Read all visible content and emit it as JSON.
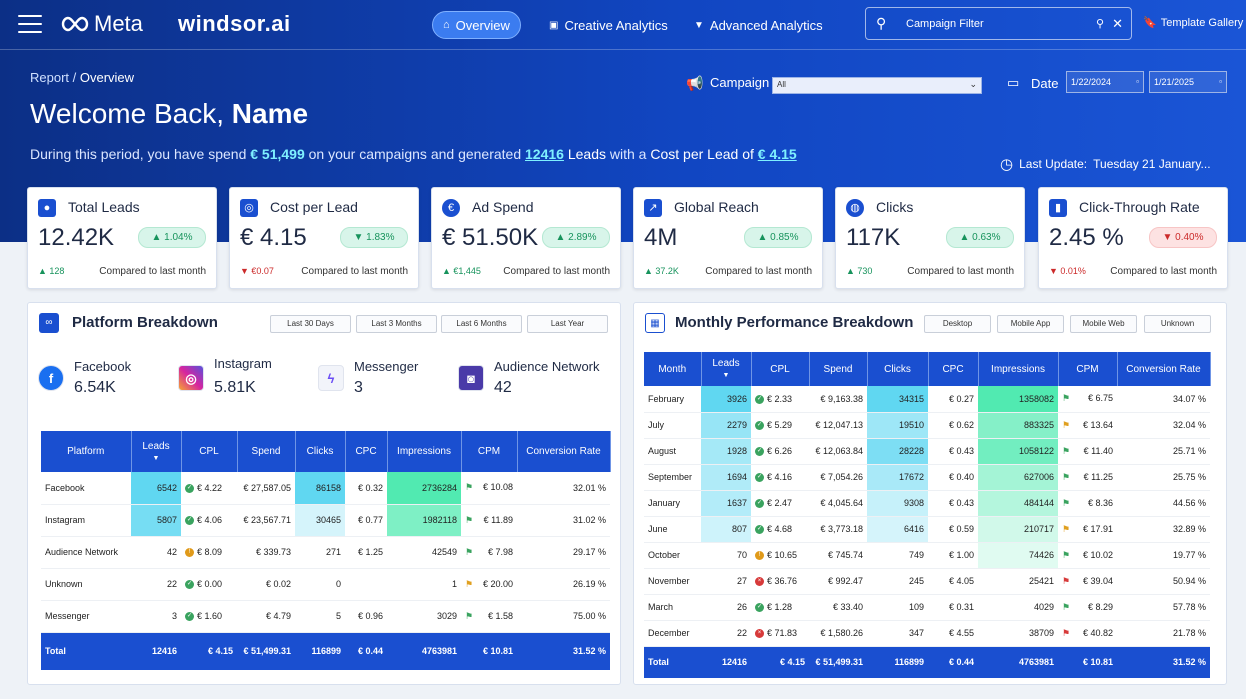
{
  "header": {
    "brand_meta": "Meta",
    "brand_windsor": "windsor.ai",
    "nav": [
      {
        "label": "Overview"
      },
      {
        "label": "Creative Analytics"
      },
      {
        "label": "Advanced Analytics"
      }
    ],
    "filter_placeholder": "Campaign Filter",
    "template_gallery": "Template Gallery"
  },
  "breadcrumb": {
    "root": "Report",
    "sep": " / ",
    "current": "Overview"
  },
  "welcome": {
    "prefix": "Welcome Back, ",
    "name": "Name"
  },
  "summary": {
    "p1": "During this period, you have spend ",
    "spend": "€ 51,499",
    "p2": " on your campaigns and generated ",
    "leads": "12416",
    "p3": " Leads",
    "p4": " with a ",
    "p5": "Cost per Lead of ",
    "cpl": "€ 4.15"
  },
  "filters": {
    "campaign_label": "Campaign",
    "campaign_value": "All",
    "date_label": "Date",
    "date_from": "1/22/2024",
    "date_to": "1/21/2025",
    "last_update_label": "Last Update:",
    "last_update_value": "Tuesday 21 January..."
  },
  "kpis": [
    {
      "title": "Total Leads",
      "value": "12.42K",
      "badge": "▲ 1.04%",
      "dir": "up",
      "delta": "▲ 128",
      "compare": "Compared to last month"
    },
    {
      "title": "Cost per Lead",
      "value": "€ 4.15",
      "badge": "▼ 1.83%",
      "dir": "up",
      "delta": "▼ €0.07",
      "compare": "Compared to last month"
    },
    {
      "title": "Ad Spend",
      "value": "€ 51.50K",
      "badge": "▲ 2.89%",
      "dir": "up",
      "delta": "▲ €1,445",
      "compare": "Compared to last month"
    },
    {
      "title": "Global Reach",
      "value": "4M",
      "badge": "▲ 0.85%",
      "dir": "up",
      "delta": "▲ 37.2K",
      "compare": "Compared to last month"
    },
    {
      "title": "Clicks",
      "value": "117K",
      "badge": "▲ 0.63%",
      "dir": "up",
      "delta": "▲ 730",
      "compare": "Compared to last month"
    },
    {
      "title": "Click-Through Rate",
      "value": "2.45 %",
      "badge": "▼ 0.40%",
      "dir": "down",
      "delta": "▼ 0.01%",
      "compare": "Compared to last month"
    }
  ],
  "platform": {
    "title": "Platform Breakdown",
    "buttons": [
      "Last 30 Days",
      "Last 3 Months",
      "Last 6 Months",
      "Last Year"
    ],
    "cards": [
      {
        "name": "Facebook",
        "value": "6.54K"
      },
      {
        "name": "Instagram",
        "value": "5.81K"
      },
      {
        "name": "Messenger",
        "value": "3"
      },
      {
        "name": "Audience Network",
        "value": "42"
      }
    ],
    "headers": [
      "Platform",
      "Leads",
      "CPL",
      "Spend",
      "Clicks",
      "CPC",
      "Impressions",
      "CPM",
      "Conversion Rate"
    ],
    "rows": [
      {
        "platform": "Facebook",
        "leads": "6542",
        "cpl": "€ 4.22",
        "cpl_status": "ok",
        "spend": "€ 27,587.05",
        "clicks": "86158",
        "cpc": "€ 0.32",
        "impressions": "2736284",
        "cpm": "€ 10.08",
        "cpm_flag": "green",
        "conv": "32.01 %",
        "leads_level": 1.0,
        "clicks_level": 1.0,
        "imp_level": 1.0
      },
      {
        "platform": "Instagram",
        "leads": "5807",
        "cpl": "€ 4.06",
        "cpl_status": "ok",
        "spend": "€ 23,567.71",
        "clicks": "30465",
        "cpc": "€ 0.77",
        "impressions": "1982118",
        "cpm": "€ 11.89",
        "cpm_flag": "green",
        "conv": "31.02 %",
        "leads_level": 0.85,
        "clicks_level": 0.15,
        "imp_level": 0.7
      },
      {
        "platform": "Audience Network",
        "leads": "42",
        "cpl": "€ 8.09",
        "cpl_status": "warn",
        "spend": "€ 339.73",
        "clicks": "271",
        "cpc": "€ 1.25",
        "impressions": "42549",
        "cpm": "€ 7.98",
        "cpm_flag": "green",
        "conv": "29.17 %",
        "leads_level": 0,
        "clicks_level": 0,
        "imp_level": 0
      },
      {
        "platform": "Unknown",
        "leads": "22",
        "cpl": "€ 0.00",
        "cpl_status": "ok",
        "spend": "€ 0.02",
        "clicks": "0",
        "cpc": "",
        "impressions": "1",
        "cpm": "€ 20.00",
        "cpm_flag": "yellow",
        "conv": "26.19 %",
        "leads_level": 0,
        "clicks_level": 0,
        "imp_level": 0
      },
      {
        "platform": "Messenger",
        "leads": "3",
        "cpl": "€ 1.60",
        "cpl_status": "ok",
        "spend": "€ 4.79",
        "clicks": "5",
        "cpc": "€ 0.96",
        "impressions": "3029",
        "cpm": "€ 1.58",
        "cpm_flag": "green",
        "conv": "75.00 %",
        "leads_level": 0,
        "clicks_level": 0,
        "imp_level": 0
      }
    ],
    "total": {
      "platform": "Total",
      "leads": "12416",
      "cpl": "€ 4.15",
      "spend": "€ 51,499.31",
      "clicks": "116899",
      "cpc": "€ 0.44",
      "impressions": "4763981",
      "cpm": "€ 10.81",
      "conv": "31.52 %"
    }
  },
  "monthly": {
    "title": "Monthly Performance Breakdown",
    "buttons": [
      "Desktop",
      "Mobile App",
      "Mobile Web",
      "Unknown"
    ],
    "headers": [
      "Month",
      "Leads",
      "CPL",
      "Spend",
      "Clicks",
      "CPC",
      "Impressions",
      "CPM",
      "Conversion Rate"
    ],
    "rows": [
      {
        "month": "February",
        "leads": "3926",
        "cpl": "€ 2.33",
        "cpl_status": "ok",
        "spend": "€ 9,163.38",
        "clicks": "34315",
        "cpc": "€ 0.27",
        "impressions": "1358082",
        "cpm": "€ 6.75",
        "cpm_flag": "green",
        "conv": "34.07 %",
        "leads_level": 1.0,
        "clicks_level": 1.0,
        "imp_level": 1.0
      },
      {
        "month": "July",
        "leads": "2279",
        "cpl": "€ 5.29",
        "cpl_status": "ok",
        "spend": "€ 12,047.13",
        "clicks": "19510",
        "cpc": "€ 0.62",
        "impressions": "883325",
        "cpm": "€ 13.64",
        "cpm_flag": "yellow",
        "conv": "32.04 %",
        "leads_level": 0.6,
        "clicks_level": 0.55,
        "imp_level": 0.65
      },
      {
        "month": "August",
        "leads": "1928",
        "cpl": "€ 6.26",
        "cpl_status": "ok",
        "spend": "€ 12,063.84",
        "clicks": "28228",
        "cpc": "€ 0.43",
        "impressions": "1058122",
        "cpm": "€ 11.40",
        "cpm_flag": "green",
        "conv": "25.71 %",
        "leads_level": 0.5,
        "clicks_level": 0.8,
        "imp_level": 0.78
      },
      {
        "month": "September",
        "leads": "1694",
        "cpl": "€ 4.16",
        "cpl_status": "ok",
        "spend": "€ 7,054.26",
        "clicks": "17672",
        "cpc": "€ 0.40",
        "impressions": "627006",
        "cpm": "€ 11.25",
        "cpm_flag": "green",
        "conv": "25.75 %",
        "leads_level": 0.42,
        "clicks_level": 0.48,
        "imp_level": 0.45
      },
      {
        "month": "January",
        "leads": "1637",
        "cpl": "€ 2.47",
        "cpl_status": "ok",
        "spend": "€ 4,045.64",
        "clicks": "9308",
        "cpc": "€ 0.43",
        "impressions": "484144",
        "cpm": "€ 8.36",
        "cpm_flag": "green",
        "conv": "44.56 %",
        "leads_level": 0.4,
        "clicks_level": 0.25,
        "imp_level": 0.35
      },
      {
        "month": "June",
        "leads": "807",
        "cpl": "€ 4.68",
        "cpl_status": "ok",
        "spend": "€ 3,773.18",
        "clicks": "6416",
        "cpc": "€ 0.59",
        "impressions": "210717",
        "cpm": "€ 17.91",
        "cpm_flag": "yellow",
        "conv": "32.89 %",
        "leads_level": 0.2,
        "clicks_level": 0.15,
        "imp_level": 0.15
      },
      {
        "month": "October",
        "leads": "70",
        "cpl": "€ 10.65",
        "cpl_status": "warn",
        "spend": "€ 745.74",
        "clicks": "749",
        "cpc": "€ 1.00",
        "impressions": "74426",
        "cpm": "€ 10.02",
        "cpm_flag": "green",
        "conv": "19.77 %",
        "leads_level": 0,
        "clicks_level": 0,
        "imp_level": 0.05
      },
      {
        "month": "November",
        "leads": "27",
        "cpl": "€ 36.76",
        "cpl_status": "bad",
        "spend": "€ 992.47",
        "clicks": "245",
        "cpc": "€ 4.05",
        "impressions": "25421",
        "cpm": "€ 39.04",
        "cpm_flag": "red",
        "conv": "50.94 %",
        "leads_level": 0,
        "clicks_level": 0,
        "imp_level": 0
      },
      {
        "month": "March",
        "leads": "26",
        "cpl": "€ 1.28",
        "cpl_status": "ok",
        "spend": "€ 33.40",
        "clicks": "109",
        "cpc": "€ 0.31",
        "impressions": "4029",
        "cpm": "€ 8.29",
        "cpm_flag": "green",
        "conv": "57.78 %",
        "leads_level": 0,
        "clicks_level": 0,
        "imp_level": 0
      },
      {
        "month": "December",
        "leads": "22",
        "cpl": "€ 71.83",
        "cpl_status": "bad",
        "spend": "€ 1,580.26",
        "clicks": "347",
        "cpc": "€ 4.55",
        "impressions": "38709",
        "cpm": "€ 40.82",
        "cpm_flag": "red",
        "conv": "21.78 %",
        "leads_level": 0,
        "clicks_level": 0,
        "imp_level": 0
      }
    ],
    "total": {
      "month": "Total",
      "leads": "12416",
      "cpl": "€ 4.15",
      "spend": "€ 51,499.31",
      "clicks": "116899",
      "cpc": "€ 0.44",
      "impressions": "4763981",
      "cpm": "€ 10.81",
      "conv": "31.52 %"
    }
  },
  "colors": {
    "accent": "#1a4fd0",
    "leads_heat": "#4fd3f0",
    "clicks_heat": "#4fd3f0",
    "imp_heat": "#3ee8a8"
  }
}
